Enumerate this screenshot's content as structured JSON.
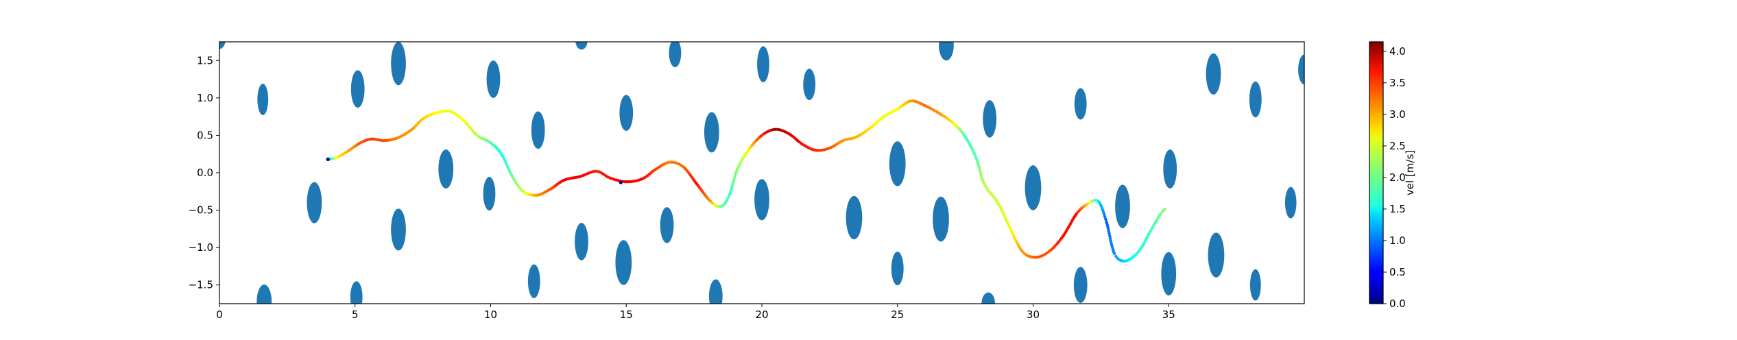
{
  "chart_data": [
    {
      "type": "scatter",
      "title": "",
      "xlabel": "",
      "ylabel": "",
      "xlim": [
        0,
        40
      ],
      "ylim": [
        -1.75,
        1.75
      ],
      "xticks": [
        0,
        5,
        10,
        15,
        20,
        25,
        30,
        35
      ],
      "yticks": [
        -1.5,
        -1.0,
        -0.5,
        0.0,
        0.5,
        1.0,
        1.5
      ],
      "xtick_labels": [
        "0",
        "5",
        "10",
        "15",
        "20",
        "25",
        "30",
        "35"
      ],
      "ytick_labels": [
        "−1.5",
        "−1.0",
        "−0.5",
        "0.0",
        "0.5",
        "1.0",
        "1.5"
      ],
      "grid": false,
      "obstacle_color": "#1f77b4",
      "obstacles": [
        {
          "x": 0.0,
          "y": 1.78,
          "w": 0.45,
          "h": 0.25
        },
        {
          "x": 1.6,
          "y": 0.98,
          "w": 0.4,
          "h": 0.42
        },
        {
          "x": 3.5,
          "y": -0.4,
          "w": 0.55,
          "h": 0.55
        },
        {
          "x": 1.65,
          "y": -1.72,
          "w": 0.55,
          "h": 0.45
        },
        {
          "x": 5.1,
          "y": 1.12,
          "w": 0.5,
          "h": 0.5
        },
        {
          "x": 6.6,
          "y": 1.46,
          "w": 0.55,
          "h": 0.58
        },
        {
          "x": 5.05,
          "y": -1.66,
          "w": 0.45,
          "h": 0.42
        },
        {
          "x": 6.6,
          "y": -0.76,
          "w": 0.55,
          "h": 0.56
        },
        {
          "x": 8.35,
          "y": 0.05,
          "w": 0.55,
          "h": 0.52
        },
        {
          "x": 10.1,
          "y": 1.25,
          "w": 0.5,
          "h": 0.5
        },
        {
          "x": 9.95,
          "y": -0.28,
          "w": 0.45,
          "h": 0.45
        },
        {
          "x": 11.75,
          "y": 0.57,
          "w": 0.5,
          "h": 0.5
        },
        {
          "x": 11.6,
          "y": -1.45,
          "w": 0.45,
          "h": 0.45
        },
        {
          "x": 13.35,
          "y": 1.77,
          "w": 0.45,
          "h": 0.25
        },
        {
          "x": 13.35,
          "y": -0.92,
          "w": 0.5,
          "h": 0.5
        },
        {
          "x": 15.0,
          "y": 0.8,
          "w": 0.5,
          "h": 0.48
        },
        {
          "x": 14.9,
          "y": -1.2,
          "w": 0.6,
          "h": 0.6
        },
        {
          "x": 16.8,
          "y": 1.6,
          "w": 0.45,
          "h": 0.38
        },
        {
          "x": 16.5,
          "y": -0.7,
          "w": 0.5,
          "h": 0.48
        },
        {
          "x": 18.15,
          "y": 0.54,
          "w": 0.55,
          "h": 0.54
        },
        {
          "x": 18.3,
          "y": -1.65,
          "w": 0.5,
          "h": 0.45
        },
        {
          "x": 20.05,
          "y": 1.45,
          "w": 0.45,
          "h": 0.48
        },
        {
          "x": 20.0,
          "y": -0.36,
          "w": 0.55,
          "h": 0.55
        },
        {
          "x": 21.75,
          "y": 1.18,
          "w": 0.45,
          "h": 0.42
        },
        {
          "x": 23.4,
          "y": -0.6,
          "w": 0.6,
          "h": 0.58
        },
        {
          "x": 25.0,
          "y": 0.12,
          "w": 0.6,
          "h": 0.6
        },
        {
          "x": 25.0,
          "y": -1.28,
          "w": 0.45,
          "h": 0.45
        },
        {
          "x": 26.8,
          "y": 1.7,
          "w": 0.55,
          "h": 0.4
        },
        {
          "x": 26.6,
          "y": -0.62,
          "w": 0.6,
          "h": 0.6
        },
        {
          "x": 28.4,
          "y": 0.72,
          "w": 0.5,
          "h": 0.5
        },
        {
          "x": 28.35,
          "y": -1.75,
          "w": 0.5,
          "h": 0.3
        },
        {
          "x": 30.0,
          "y": -0.2,
          "w": 0.6,
          "h": 0.6
        },
        {
          "x": 31.75,
          "y": 0.92,
          "w": 0.45,
          "h": 0.42
        },
        {
          "x": 31.75,
          "y": -1.5,
          "w": 0.5,
          "h": 0.48
        },
        {
          "x": 33.3,
          "y": -0.45,
          "w": 0.55,
          "h": 0.58
        },
        {
          "x": 35.05,
          "y": 0.05,
          "w": 0.5,
          "h": 0.52
        },
        {
          "x": 35.0,
          "y": -1.35,
          "w": 0.55,
          "h": 0.58
        },
        {
          "x": 36.65,
          "y": 1.32,
          "w": 0.55,
          "h": 0.55
        },
        {
          "x": 36.75,
          "y": -1.1,
          "w": 0.6,
          "h": 0.6
        },
        {
          "x": 38.2,
          "y": 0.98,
          "w": 0.45,
          "h": 0.48
        },
        {
          "x": 38.2,
          "y": -1.5,
          "w": 0.4,
          "h": 0.42
        },
        {
          "x": 39.5,
          "y": -0.4,
          "w": 0.42,
          "h": 0.42
        },
        {
          "x": 40.0,
          "y": 1.38,
          "w": 0.45,
          "h": 0.4
        }
      ],
      "trajectory": [
        {
          "x": 4.0,
          "y": 0.18,
          "v": 0.8
        },
        {
          "x": 4.3,
          "y": 0.2,
          "v": 2.6
        },
        {
          "x": 4.7,
          "y": 0.28,
          "v": 2.9
        },
        {
          "x": 5.2,
          "y": 0.4,
          "v": 3.3
        },
        {
          "x": 5.6,
          "y": 0.45,
          "v": 3.4
        },
        {
          "x": 6.1,
          "y": 0.43,
          "v": 3.3
        },
        {
          "x": 6.6,
          "y": 0.47,
          "v": 3.1
        },
        {
          "x": 7.1,
          "y": 0.58,
          "v": 3.0
        },
        {
          "x": 7.5,
          "y": 0.72,
          "v": 2.8
        },
        {
          "x": 8.0,
          "y": 0.8,
          "v": 2.6
        },
        {
          "x": 8.5,
          "y": 0.82,
          "v": 2.5
        },
        {
          "x": 9.0,
          "y": 0.7,
          "v": 2.6
        },
        {
          "x": 9.5,
          "y": 0.5,
          "v": 2.3
        },
        {
          "x": 10.0,
          "y": 0.4,
          "v": 1.9
        },
        {
          "x": 10.4,
          "y": 0.25,
          "v": 1.6
        },
        {
          "x": 10.8,
          "y": -0.05,
          "v": 2.0
        },
        {
          "x": 11.2,
          "y": -0.25,
          "v": 2.4
        },
        {
          "x": 11.7,
          "y": -0.3,
          "v": 3.0
        },
        {
          "x": 12.2,
          "y": -0.22,
          "v": 3.3
        },
        {
          "x": 12.7,
          "y": -0.1,
          "v": 3.7
        },
        {
          "x": 13.3,
          "y": -0.05,
          "v": 3.7
        },
        {
          "x": 13.9,
          "y": 0.02,
          "v": 3.5
        },
        {
          "x": 14.4,
          "y": -0.07,
          "v": 3.6
        },
        {
          "x": 15.0,
          "y": -0.12,
          "v": 3.7
        },
        {
          "x": 15.6,
          "y": -0.08,
          "v": 3.6
        },
        {
          "x": 16.1,
          "y": 0.05,
          "v": 3.4
        },
        {
          "x": 16.6,
          "y": 0.14,
          "v": 3.1
        },
        {
          "x": 17.1,
          "y": 0.08,
          "v": 3.2
        },
        {
          "x": 17.6,
          "y": -0.15,
          "v": 3.6
        },
        {
          "x": 18.1,
          "y": -0.38,
          "v": 3.0
        },
        {
          "x": 18.5,
          "y": -0.45,
          "v": 2.0
        },
        {
          "x": 18.8,
          "y": -0.3,
          "v": 1.8
        },
        {
          "x": 19.1,
          "y": 0.05,
          "v": 2.1
        },
        {
          "x": 19.5,
          "y": 0.3,
          "v": 2.6
        },
        {
          "x": 20.0,
          "y": 0.5,
          "v": 3.5
        },
        {
          "x": 20.5,
          "y": 0.58,
          "v": 4.0
        },
        {
          "x": 21.0,
          "y": 0.52,
          "v": 3.8
        },
        {
          "x": 21.5,
          "y": 0.38,
          "v": 3.6
        },
        {
          "x": 22.0,
          "y": 0.3,
          "v": 3.5
        },
        {
          "x": 22.5,
          "y": 0.33,
          "v": 3.3
        },
        {
          "x": 23.0,
          "y": 0.43,
          "v": 3.0
        },
        {
          "x": 23.5,
          "y": 0.48,
          "v": 2.9
        },
        {
          "x": 24.0,
          "y": 0.6,
          "v": 2.7
        },
        {
          "x": 24.5,
          "y": 0.75,
          "v": 2.5
        },
        {
          "x": 25.0,
          "y": 0.85,
          "v": 2.6
        },
        {
          "x": 25.5,
          "y": 0.96,
          "v": 3.0
        },
        {
          "x": 26.0,
          "y": 0.9,
          "v": 3.2
        },
        {
          "x": 26.6,
          "y": 0.78,
          "v": 3.0
        },
        {
          "x": 27.1,
          "y": 0.65,
          "v": 2.6
        },
        {
          "x": 27.5,
          "y": 0.48,
          "v": 1.8
        },
        {
          "x": 27.9,
          "y": 0.2,
          "v": 1.9
        },
        {
          "x": 28.2,
          "y": -0.15,
          "v": 2.3
        },
        {
          "x": 28.7,
          "y": -0.4,
          "v": 2.4
        },
        {
          "x": 29.1,
          "y": -0.7,
          "v": 2.5
        },
        {
          "x": 29.6,
          "y": -1.05,
          "v": 3.0
        },
        {
          "x": 30.1,
          "y": -1.13,
          "v": 3.3
        },
        {
          "x": 30.6,
          "y": -1.05,
          "v": 3.3
        },
        {
          "x": 31.1,
          "y": -0.85,
          "v": 3.6
        },
        {
          "x": 31.6,
          "y": -0.55,
          "v": 3.6
        },
        {
          "x": 32.0,
          "y": -0.42,
          "v": 2.8
        },
        {
          "x": 32.4,
          "y": -0.38,
          "v": 1.5
        },
        {
          "x": 32.7,
          "y": -0.65,
          "v": 0.9
        },
        {
          "x": 33.0,
          "y": -1.08,
          "v": 1.1
        },
        {
          "x": 33.4,
          "y": -1.18,
          "v": 1.4
        },
        {
          "x": 33.9,
          "y": -1.05,
          "v": 1.7
        },
        {
          "x": 34.3,
          "y": -0.8,
          "v": 1.8
        },
        {
          "x": 34.7,
          "y": -0.55,
          "v": 2.0
        },
        {
          "x": 34.9,
          "y": -0.48,
          "v": 2.2
        }
      ],
      "markers": [
        {
          "x": 4.0,
          "y": 0.18
        },
        {
          "x": 14.8,
          "y": -0.13
        }
      ]
    },
    {
      "type": "colorbar",
      "label": "vel [m/s]",
      "range": [
        0.0,
        4.15
      ],
      "ticks": [
        0.0,
        0.5,
        1.0,
        1.5,
        2.0,
        2.5,
        3.0,
        3.5,
        4.0
      ],
      "tick_labels": [
        "0.0",
        "0.5",
        "1.0",
        "1.5",
        "2.0",
        "2.5",
        "3.0",
        "3.5",
        "4.0"
      ],
      "colormap": "jet"
    }
  ]
}
